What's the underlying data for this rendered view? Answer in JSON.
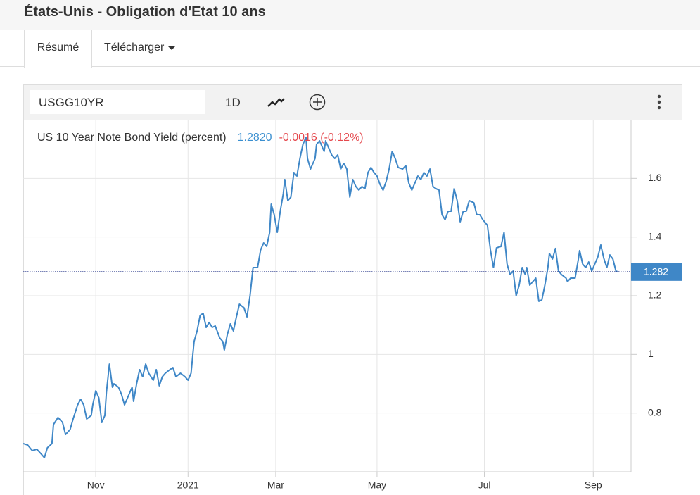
{
  "header": {
    "title": "États-Unis - Obligation d'Etat 10 ans"
  },
  "tabs": [
    "Résumé",
    "Télécharger"
  ],
  "toolbar": {
    "symbol": "USGG10YR",
    "interval": "1D"
  },
  "chart_data": {
    "type": "line",
    "legend_value": "1.2820",
    "legend_change": "-0.0016 (-0.12%)",
    "last_value": 1.282,
    "series": [
      {
        "name": "US 10 Year Note Bond Yield (percent)",
        "color": "#3f87c7",
        "x": [
          0,
          3,
          6,
          9,
          12,
          14,
          16,
          19,
          20,
          23,
          26,
          28,
          31,
          33,
          36,
          38,
          40,
          42,
          45,
          46,
          48,
          50,
          52,
          54,
          55,
          57,
          59,
          60,
          63,
          65,
          67,
          70,
          72,
          73,
          75,
          77,
          79,
          81,
          83,
          86,
          88,
          90,
          92,
          94,
          97,
          99,
          101,
          104,
          107,
          109,
          111,
          113,
          115,
          117,
          119,
          121,
          123,
          125,
          127,
          130,
          132,
          133,
          135,
          137,
          139,
          141,
          143,
          146,
          148,
          150,
          152,
          155,
          157,
          159,
          161,
          163,
          164,
          166,
          168,
          170,
          172,
          173,
          175,
          177,
          179,
          181,
          183,
          185,
          187,
          188,
          190,
          193,
          194,
          196,
          199,
          200,
          202,
          204,
          206,
          208,
          210,
          212,
          214,
          216,
          218,
          220,
          222,
          224,
          226,
          228,
          230,
          232,
          234,
          236,
          238,
          240,
          242,
          244,
          246,
          248,
          251,
          253,
          255,
          257,
          259,
          261,
          263,
          265,
          267,
          269,
          271,
          273,
          275,
          277,
          279,
          281,
          283,
          285,
          287,
          289,
          291,
          293,
          295,
          298,
          300,
          302,
          304,
          307,
          309,
          311,
          313,
          316,
          318,
          320,
          322,
          324,
          326,
          328,
          330,
          332,
          333,
          335,
          337,
          339,
          341,
          343,
          345,
          347,
          348,
          350,
          352,
          354,
          356,
          359,
          360,
          362,
          365,
          367,
          368,
          370,
          372,
          374,
          376,
          378,
          380,
          382,
          384,
          386,
          388,
          390,
          392,
          393
        ],
        "values": [
          0.696,
          0.691,
          0.672,
          0.677,
          0.66,
          0.648,
          0.682,
          0.696,
          0.761,
          0.785,
          0.768,
          0.727,
          0.744,
          0.78,
          0.828,
          0.847,
          0.828,
          0.78,
          0.792,
          0.828,
          0.876,
          0.852,
          0.768,
          0.792,
          0.869,
          0.967,
          0.888,
          0.9,
          0.888,
          0.864,
          0.828,
          0.864,
          0.888,
          0.84,
          0.9,
          0.948,
          0.924,
          0.967,
          0.936,
          0.912,
          0.948,
          0.893,
          0.924,
          0.936,
          0.948,
          0.955,
          0.924,
          0.936,
          0.924,
          0.912,
          0.936,
          1.044,
          1.08,
          1.133,
          1.14,
          1.092,
          1.109,
          1.092,
          1.097,
          1.056,
          1.044,
          1.015,
          1.068,
          1.104,
          1.08,
          1.128,
          1.171,
          1.159,
          1.128,
          1.2,
          1.296,
          1.296,
          1.356,
          1.38,
          1.368,
          1.416,
          1.512,
          1.476,
          1.416,
          1.488,
          1.548,
          1.596,
          1.524,
          1.536,
          1.62,
          1.608,
          1.668,
          1.716,
          1.74,
          1.668,
          1.632,
          1.668,
          1.716,
          1.728,
          1.692,
          1.728,
          1.704,
          1.68,
          1.668,
          1.68,
          1.632,
          1.651,
          1.632,
          1.536,
          1.596,
          1.572,
          1.56,
          1.572,
          1.565,
          1.62,
          1.637,
          1.62,
          1.608,
          1.579,
          1.56,
          1.589,
          1.632,
          1.692,
          1.668,
          1.637,
          1.632,
          1.644,
          1.584,
          1.56,
          1.584,
          1.608,
          1.596,
          1.62,
          1.608,
          1.632,
          1.572,
          1.565,
          1.56,
          1.476,
          1.459,
          1.488,
          1.488,
          1.565,
          1.524,
          1.452,
          1.488,
          1.488,
          1.524,
          1.517,
          1.476,
          1.476,
          1.459,
          1.44,
          1.356,
          1.296,
          1.363,
          1.368,
          1.416,
          1.308,
          1.272,
          1.284,
          1.2,
          1.236,
          1.296,
          1.272,
          1.296,
          1.236,
          1.248,
          1.26,
          1.181,
          1.186,
          1.236,
          1.296,
          1.344,
          1.325,
          1.361,
          1.284,
          1.272,
          1.26,
          1.248,
          1.26,
          1.26,
          1.32,
          1.354,
          1.308,
          1.296,
          1.315,
          1.284,
          1.308,
          1.332,
          1.373,
          1.327,
          1.296,
          1.339,
          1.325,
          1.284,
          1.282
        ]
      }
    ],
    "xlim": [
      0,
      402
    ],
    "xticks": [
      {
        "value": 48,
        "label": "Nov"
      },
      {
        "value": 109,
        "label": "2021"
      },
      {
        "value": 167,
        "label": "Mar"
      },
      {
        "value": 234,
        "label": "May"
      },
      {
        "value": 305,
        "label": "Jul"
      },
      {
        "value": 377,
        "label": "Sep"
      }
    ],
    "ylim": [
      0.6,
      1.8
    ],
    "yticks": [
      0.8,
      1,
      1.2,
      1.4,
      1.6
    ],
    "grid": true
  }
}
